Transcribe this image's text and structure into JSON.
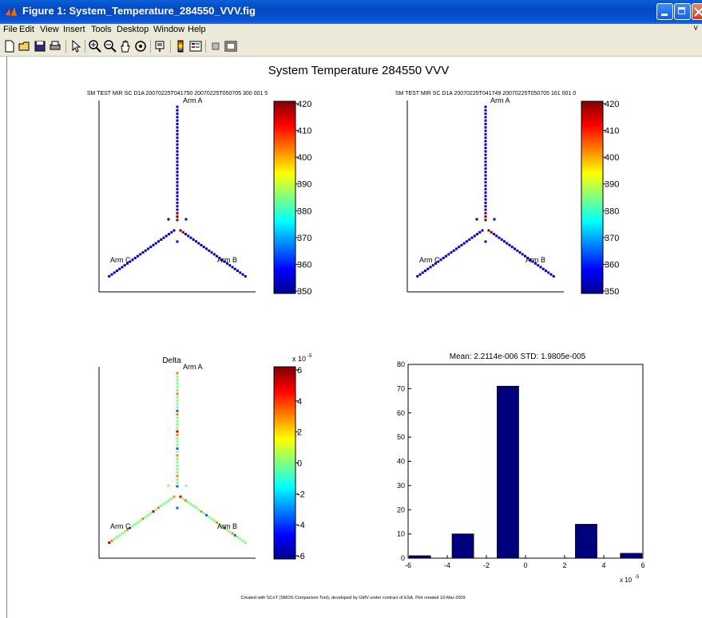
{
  "window": {
    "title": "Figure 1: System_Temperature_284550_VVV.fig"
  },
  "menu": [
    "File",
    "Edit",
    "View",
    "Insert",
    "Tools",
    "Desktop",
    "Window",
    "Help"
  ],
  "toolbar_icons": [
    "new-file-icon",
    "open-folder-icon",
    "save-icon",
    "print-icon",
    "pointer-icon",
    "zoom-in-icon",
    "zoom-out-icon",
    "pan-hand-icon",
    "rotate-3d-icon",
    "data-cursor-icon",
    "colorbar-icon",
    "legend-icon",
    "hide-plot-tools-icon",
    "show-plot-tools-icon"
  ],
  "figure": {
    "suptitle": "System Temperature 284550 VVV",
    "footer": "Created with SCoT (SMOS Comparison Tool), developed by GMV under contract of ESA. Plot created 10-Mar-2009"
  },
  "panels": {
    "top_left": {
      "title": "SM TEST MIR SC D1A 20070225T041750 20070225T050705 300 001 5",
      "arm_labels": {
        "a": "Arm A",
        "b": "Arm B",
        "c": "Arm C"
      },
      "colorbar_ticks": [
        "420",
        "410",
        "400",
        "390",
        "380",
        "370",
        "360",
        "350"
      ]
    },
    "top_right": {
      "title": "SM TEST MIR SC D1A 20070225T041749 20070225T050705 161 001 0",
      "arm_labels": {
        "a": "Arm A",
        "b": "Arm B",
        "c": "Arm C"
      },
      "colorbar_ticks": [
        "420",
        "410",
        "400",
        "390",
        "380",
        "370",
        "360",
        "350"
      ]
    },
    "bottom_left": {
      "title": "Delta",
      "arm_labels": {
        "a": "Arm A",
        "b": "Arm B",
        "c": "Arm C"
      },
      "colorbar_ticks": [
        "6",
        "4",
        "2",
        "0",
        "-2",
        "-4",
        "-6"
      ],
      "colorbar_multiplier": "x 10",
      "colorbar_exponent": "-5"
    }
  },
  "chart_data": {
    "type": "bar",
    "title": "Mean: 2.2114e-006 STD: 1.9805e-005",
    "x": [
      -5.4,
      -3.2,
      -0.9,
      3.1,
      5.4
    ],
    "values": [
      1,
      10,
      71,
      14,
      2
    ],
    "bar_color": "#00007f",
    "xlim": [
      -6,
      6
    ],
    "ylim": [
      0,
      80
    ],
    "xticks": [
      "-6",
      "-4",
      "-2",
      "0",
      "2",
      "4",
      "6"
    ],
    "yticks": [
      "0",
      "10",
      "20",
      "30",
      "40",
      "50",
      "60",
      "70",
      "80"
    ],
    "x_multiplier": "x 10",
    "x_exponent": "-5"
  }
}
